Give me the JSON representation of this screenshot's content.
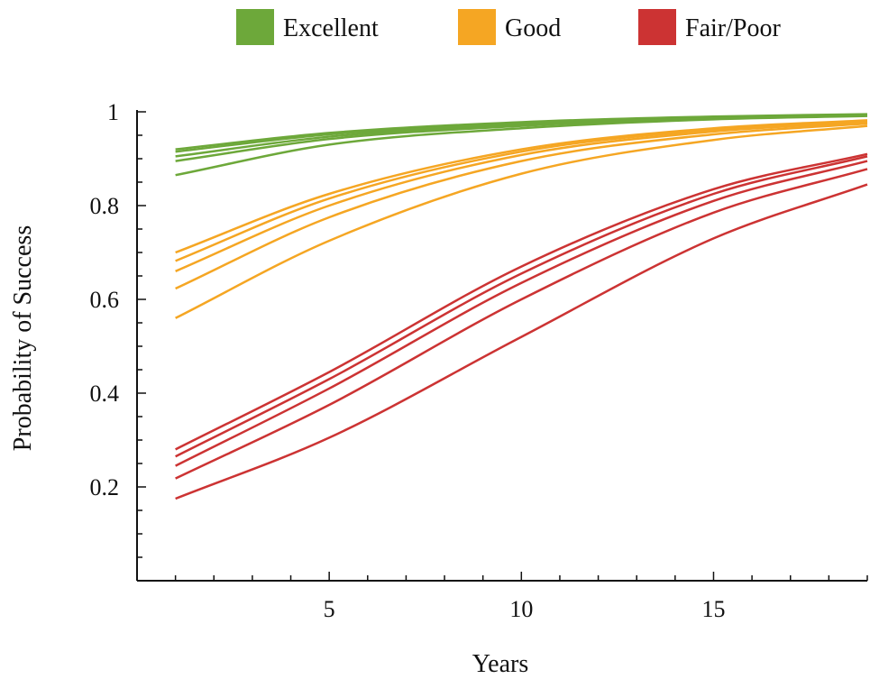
{
  "chart_data": {
    "type": "line",
    "xlabel": "Years",
    "ylabel": "Probability of Success",
    "xlim": [
      0,
      19
    ],
    "ylim": [
      0,
      1
    ],
    "x_ticks": [
      5,
      10,
      15
    ],
    "x_tick_labels": [
      "5",
      "10",
      "15"
    ],
    "y_ticks": [
      0.2,
      0.4,
      0.6,
      0.8,
      1
    ],
    "y_tick_labels": [
      "0.2",
      "0.4",
      "0.6",
      "0.8",
      "1"
    ],
    "grid": false,
    "legend_position": "top",
    "groups": [
      {
        "name": "Excellent",
        "color": "#6da83a",
        "curves": [
          [
            [
              1,
              0.92
            ],
            [
              5,
              0.955
            ],
            [
              10,
              0.978
            ],
            [
              15,
              0.99
            ],
            [
              19,
              0.995
            ]
          ],
          [
            [
              1,
              0.915
            ],
            [
              5,
              0.952
            ],
            [
              10,
              0.976
            ],
            [
              15,
              0.989
            ],
            [
              19,
              0.994
            ]
          ],
          [
            [
              1,
              0.905
            ],
            [
              5,
              0.947
            ],
            [
              10,
              0.973
            ],
            [
              15,
              0.987
            ],
            [
              19,
              0.993
            ]
          ],
          [
            [
              1,
              0.895
            ],
            [
              5,
              0.942
            ],
            [
              10,
              0.97
            ],
            [
              15,
              0.986
            ],
            [
              19,
              0.992
            ]
          ],
          [
            [
              1,
              0.865
            ],
            [
              5,
              0.93
            ],
            [
              10,
              0.965
            ],
            [
              15,
              0.984
            ],
            [
              19,
              0.991
            ]
          ]
        ]
      },
      {
        "name": "Good",
        "color": "#f5a623",
        "curves": [
          [
            [
              1,
              0.7
            ],
            [
              5,
              0.825
            ],
            [
              10,
              0.92
            ],
            [
              15,
              0.965
            ],
            [
              19,
              0.982
            ]
          ],
          [
            [
              1,
              0.682
            ],
            [
              5,
              0.815
            ],
            [
              10,
              0.915
            ],
            [
              15,
              0.962
            ],
            [
              19,
              0.98
            ]
          ],
          [
            [
              1,
              0.66
            ],
            [
              5,
              0.8
            ],
            [
              10,
              0.908
            ],
            [
              15,
              0.958
            ],
            [
              19,
              0.978
            ]
          ],
          [
            [
              1,
              0.623
            ],
            [
              5,
              0.775
            ],
            [
              10,
              0.895
            ],
            [
              15,
              0.952
            ],
            [
              19,
              0.975
            ]
          ],
          [
            [
              1,
              0.56
            ],
            [
              5,
              0.725
            ],
            [
              10,
              0.868
            ],
            [
              15,
              0.94
            ],
            [
              19,
              0.97
            ]
          ]
        ]
      },
      {
        "name": "Fair/Poor",
        "color": "#cc3333",
        "curves": [
          [
            [
              1,
              0.28
            ],
            [
              5,
              0.445
            ],
            [
              10,
              0.67
            ],
            [
              15,
              0.835
            ],
            [
              19,
              0.91
            ]
          ],
          [
            [
              1,
              0.265
            ],
            [
              5,
              0.43
            ],
            [
              10,
              0.655
            ],
            [
              15,
              0.825
            ],
            [
              19,
              0.905
            ]
          ],
          [
            [
              1,
              0.245
            ],
            [
              5,
              0.41
            ],
            [
              10,
              0.635
            ],
            [
              15,
              0.81
            ],
            [
              19,
              0.895
            ]
          ],
          [
            [
              1,
              0.218
            ],
            [
              5,
              0.375
            ],
            [
              10,
              0.6
            ],
            [
              15,
              0.785
            ],
            [
              19,
              0.878
            ]
          ],
          [
            [
              1,
              0.175
            ],
            [
              5,
              0.305
            ],
            [
              10,
              0.52
            ],
            [
              15,
              0.73
            ],
            [
              19,
              0.845
            ]
          ]
        ]
      }
    ]
  }
}
